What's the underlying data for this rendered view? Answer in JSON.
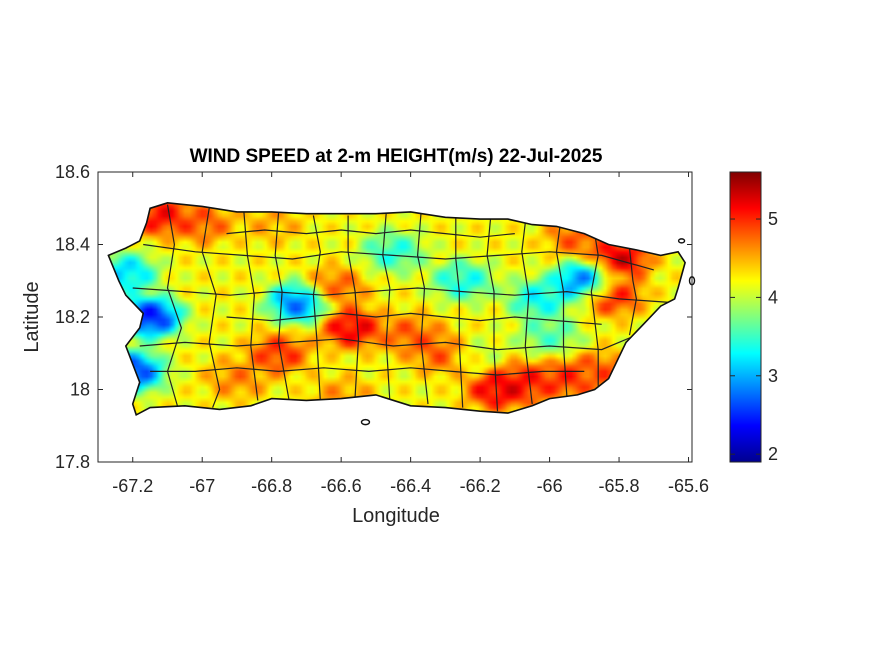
{
  "figure": {
    "title": "WIND SPEED at 2-m HEIGHT(m/s) 22-Jul-2025",
    "xlabel": "Longitude",
    "ylabel": "Latitude"
  },
  "chart_data": {
    "type": "heatmap",
    "title": "WIND SPEED at 2-m HEIGHT(m/s) 22-Jul-2025",
    "xlabel": "Longitude",
    "ylabel": "Latitude",
    "xlim": [
      -67.3,
      -65.59
    ],
    "ylim": [
      17.8,
      18.6
    ],
    "x_ticks": [
      -67.2,
      -67,
      -66.8,
      -66.6,
      -66.4,
      -66.2,
      -66,
      -65.8,
      -65.6
    ],
    "x_tick_labels": [
      "-67.2",
      "-67",
      "-66.8",
      "-66.6",
      "-66.4",
      "-66.2",
      "-66",
      "-65.8",
      "-65.6"
    ],
    "y_ticks": [
      17.8,
      18,
      18.2,
      18.4,
      18.6
    ],
    "y_tick_labels": [
      "17.8",
      "18",
      "18.2",
      "18.4",
      "18.6"
    ],
    "colorbar": {
      "min": 1.9,
      "max": 5.6,
      "colormap": "jet",
      "ticks": [
        2,
        3,
        4,
        5
      ],
      "tick_labels": [
        "2",
        "3",
        "4",
        "5"
      ]
    },
    "field_anomalies": [
      {
        "lon": -67.15,
        "lat": 18.2,
        "value": 1.9
      },
      {
        "lon": -67.2,
        "lat": 18.05,
        "value": 2.1
      },
      {
        "lon": -67.22,
        "lat": 18.32,
        "value": 2.8
      },
      {
        "lon": -66.72,
        "lat": 18.24,
        "value": 2.3
      },
      {
        "lon": -66.45,
        "lat": 18.38,
        "value": 3.2
      },
      {
        "lon": -66.25,
        "lat": 18.3,
        "value": 3.1
      },
      {
        "lon": -66.03,
        "lat": 18.25,
        "value": 3.0
      },
      {
        "lon": -65.9,
        "lat": 18.3,
        "value": 2.3
      },
      {
        "lon": -66.0,
        "lat": 18.15,
        "value": 3.4
      },
      {
        "lon": -66.22,
        "lat": 18.1,
        "value": 3.9
      },
      {
        "lon": -67.12,
        "lat": 18.48,
        "value": 5.4
      },
      {
        "lon": -67.0,
        "lat": 18.46,
        "value": 5.0
      },
      {
        "lon": -66.8,
        "lat": 18.46,
        "value": 4.6
      },
      {
        "lon": -66.57,
        "lat": 18.17,
        "value": 5.5
      },
      {
        "lon": -66.62,
        "lat": 18.28,
        "value": 5.0
      },
      {
        "lon": -66.78,
        "lat": 18.1,
        "value": 5.2
      },
      {
        "lon": -66.4,
        "lat": 18.15,
        "value": 5.0
      },
      {
        "lon": -66.3,
        "lat": 18.1,
        "value": 5.1
      },
      {
        "lon": -66.15,
        "lat": 18.0,
        "value": 5.5
      },
      {
        "lon": -66.07,
        "lat": 18.02,
        "value": 5.3
      },
      {
        "lon": -65.85,
        "lat": 18.05,
        "value": 5.0
      },
      {
        "lon": -65.8,
        "lat": 18.36,
        "value": 5.6
      },
      {
        "lon": -65.82,
        "lat": 18.26,
        "value": 5.3
      },
      {
        "lon": -66.9,
        "lat": 18.03,
        "value": 4.8
      },
      {
        "lon": -66.6,
        "lat": 17.98,
        "value": 4.7
      },
      {
        "lon": -65.92,
        "lat": 18.42,
        "value": 5.0
      },
      {
        "lon": -65.95,
        "lat": 18.03,
        "value": 5.2
      }
    ]
  }
}
